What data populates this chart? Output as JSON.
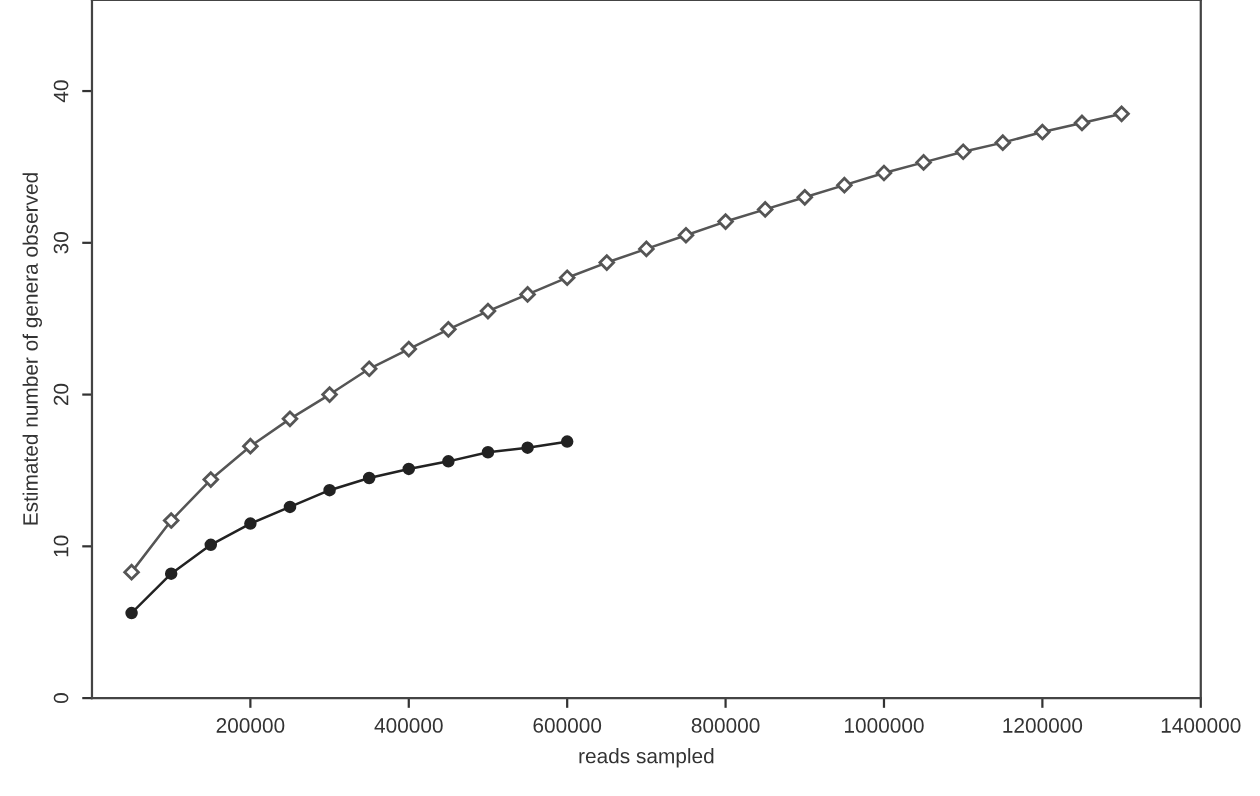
{
  "chart_data": {
    "type": "line",
    "xlabel": "reads sampled",
    "ylabel": "Estimated number of genera observed",
    "xlim": [
      0,
      1400000
    ],
    "ylim": [
      0,
      46
    ],
    "xticks": [
      200000,
      400000,
      600000,
      800000,
      1000000,
      1200000,
      1400000
    ],
    "yticks": [
      0,
      10,
      20,
      30,
      40
    ],
    "grid": false,
    "line_style": "solid",
    "series": [
      {
        "color": "#222222",
        "marker": "circle",
        "x": [
          50000,
          100000,
          150000,
          200000,
          250000,
          300000,
          350000,
          400000,
          450000,
          500000,
          550000,
          600000
        ],
        "values": [
          5.6,
          8.2,
          10.1,
          11.5,
          12.6,
          13.7,
          14.5,
          15.1,
          15.6,
          16.2,
          16.5,
          16.9
        ]
      },
      {
        "color": "#555555",
        "marker": "diamond",
        "x": [
          50000,
          100000,
          150000,
          200000,
          250000,
          300000,
          350000,
          400000,
          450000,
          500000,
          550000,
          600000,
          650000,
          700000,
          750000,
          800000,
          850000,
          900000,
          950000,
          1000000,
          1050000,
          1100000,
          1150000,
          1200000,
          1250000,
          1300000
        ],
        "values": [
          8.3,
          11.7,
          14.4,
          16.6,
          18.4,
          20.0,
          21.7,
          23.0,
          24.3,
          25.5,
          26.6,
          27.7,
          28.7,
          29.6,
          30.5,
          31.4,
          32.2,
          33.0,
          33.8,
          34.6,
          35.3,
          36.0,
          36.6,
          37.3,
          37.9,
          38.5
        ]
      }
    ]
  }
}
